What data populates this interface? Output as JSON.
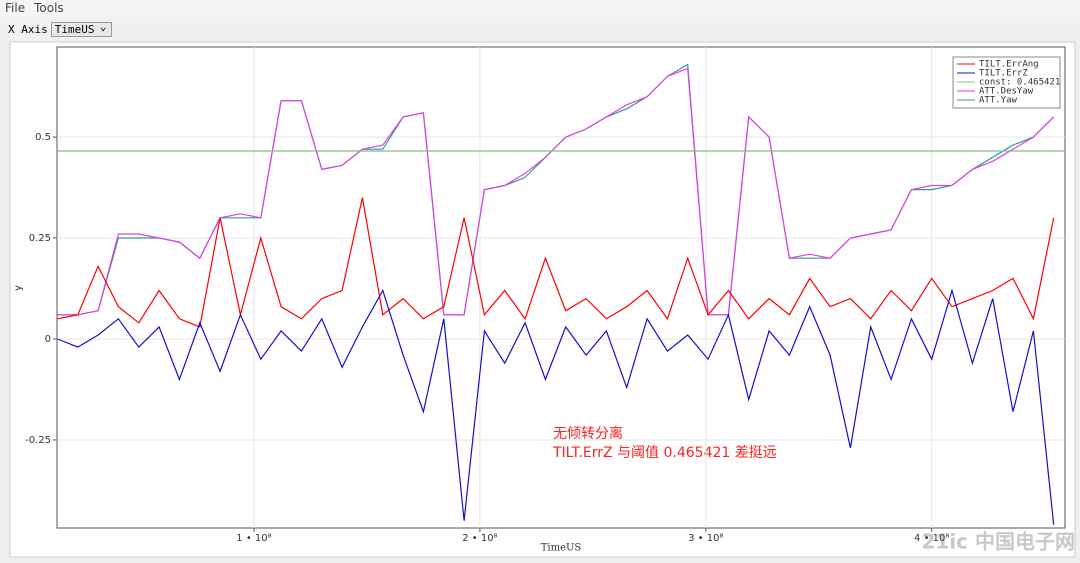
{
  "menu": [
    "File",
    "Tools"
  ],
  "toolbar": {
    "label": "X Axis",
    "selected": "TimeUS"
  },
  "watermark": "21ic 中国电子网",
  "chart_data": {
    "type": "line",
    "x_label": "TimeUS",
    "y_label": "y",
    "annotations": [
      "无倾转分离",
      "TILT.ErrZ 与阈值 0.465421 差挺远"
    ],
    "xlim": [
      12800000,
      459000000
    ],
    "ylim": [
      -0.468,
      0.723
    ],
    "xticks": [
      {
        "value": 100000000,
        "label": "1 • 10⁸"
      },
      {
        "value": 200000000,
        "label": "2 • 10⁸"
      },
      {
        "value": 300000000,
        "label": "3 • 10⁸"
      },
      {
        "value": 400000000,
        "label": "4 • 10⁸"
      }
    ],
    "yticks": [
      -0.25,
      0,
      0.25,
      0.5
    ],
    "grid": true,
    "legend": "top-right",
    "x": [
      13000000,
      22000000,
      31000000,
      40000000,
      49000000,
      58000000,
      67000000,
      76000000,
      85000000,
      94000000,
      103000000,
      112000000,
      121000000,
      130000000,
      139000000,
      148000000,
      157000000,
      166000000,
      175000000,
      184000000,
      193000000,
      202000000,
      211000000,
      220000000,
      229000000,
      238000000,
      247000000,
      256000000,
      265000000,
      274000000,
      283000000,
      292000000,
      301000000,
      310000000,
      319000000,
      328000000,
      337000000,
      346000000,
      355000000,
      364000000,
      373000000,
      382000000,
      391000000,
      400000000,
      409000000,
      418000000,
      427000000,
      436000000,
      445000000,
      454000000
    ],
    "series": [
      {
        "name": "ATT.Yaw",
        "color": "#2a9d9d",
        "values": [
          0.06,
          0.06,
          0.07,
          0.25,
          0.25,
          0.25,
          0.24,
          0.2,
          0.3,
          0.3,
          0.3,
          0.59,
          0.59,
          0.42,
          0.43,
          0.47,
          0.47,
          0.55,
          0.56,
          0.06,
          0.06,
          0.37,
          0.38,
          0.4,
          0.45,
          0.5,
          0.52,
          0.55,
          0.57,
          0.6,
          0.65,
          0.68,
          0.06,
          0.06,
          0.55,
          0.5,
          0.2,
          0.2,
          0.2,
          0.25,
          0.26,
          0.27,
          0.37,
          0.37,
          0.38,
          0.42,
          0.45,
          0.48,
          0.5,
          0.55
        ]
      },
      {
        "name": "ATT.DesYaw",
        "color": "#e040e0",
        "values": [
          0.06,
          0.06,
          0.07,
          0.26,
          0.26,
          0.25,
          0.24,
          0.2,
          0.3,
          0.31,
          0.3,
          0.59,
          0.59,
          0.42,
          0.43,
          0.47,
          0.48,
          0.55,
          0.56,
          0.06,
          0.06,
          0.37,
          0.38,
          0.41,
          0.45,
          0.5,
          0.52,
          0.55,
          0.58,
          0.6,
          0.65,
          0.67,
          0.06,
          0.06,
          0.55,
          0.5,
          0.2,
          0.21,
          0.2,
          0.25,
          0.26,
          0.27,
          0.37,
          0.38,
          0.38,
          0.42,
          0.44,
          0.47,
          0.5,
          0.55
        ]
      },
      {
        "name": "const: 0.465421",
        "color": "#80c080",
        "x": [
          12800000,
          459000000
        ],
        "values": [
          0.465421,
          0.465421
        ]
      },
      {
        "name": "TILT.ErrAng",
        "color": "#ff0000",
        "values": [
          0.05,
          0.06,
          0.18,
          0.08,
          0.04,
          0.12,
          0.05,
          0.03,
          0.3,
          0.06,
          0.25,
          0.08,
          0.05,
          0.1,
          0.12,
          0.35,
          0.06,
          0.1,
          0.05,
          0.08,
          0.3,
          0.06,
          0.12,
          0.05,
          0.2,
          0.07,
          0.1,
          0.05,
          0.08,
          0.12,
          0.05,
          0.2,
          0.06,
          0.12,
          0.05,
          0.1,
          0.06,
          0.15,
          0.08,
          0.1,
          0.05,
          0.12,
          0.07,
          0.15,
          0.08,
          0.1,
          0.12,
          0.15,
          0.05,
          0.3
        ]
      },
      {
        "name": "TILT.ErrZ",
        "color": "#1010cc",
        "values": [
          0.0,
          -0.02,
          0.01,
          0.05,
          -0.02,
          0.03,
          -0.1,
          0.04,
          -0.08,
          0.06,
          -0.05,
          0.02,
          -0.03,
          0.05,
          -0.07,
          0.03,
          0.12,
          -0.04,
          -0.18,
          0.05,
          -0.45,
          0.02,
          -0.06,
          0.04,
          -0.1,
          0.03,
          -0.04,
          0.02,
          -0.12,
          0.05,
          -0.03,
          0.01,
          -0.05,
          0.06,
          -0.15,
          0.02,
          -0.04,
          0.08,
          -0.04,
          -0.27,
          0.03,
          -0.1,
          0.05,
          -0.05,
          0.12,
          -0.06,
          0.1,
          -0.18,
          0.02,
          -0.46
        ]
      }
    ]
  }
}
